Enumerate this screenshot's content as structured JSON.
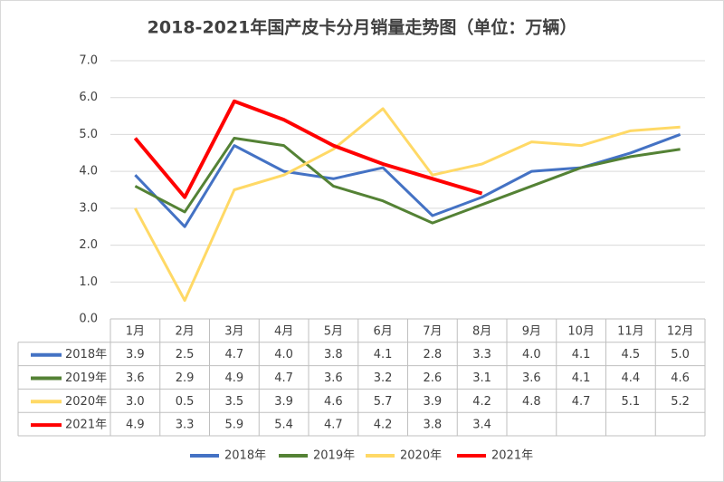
{
  "chart_data": {
    "type": "line",
    "title": "2018-2021年国产皮卡分月销量走势图（单位：万辆）",
    "categories": [
      "1月",
      "2月",
      "3月",
      "4月",
      "5月",
      "6月",
      "7月",
      "8月",
      "9月",
      "10月",
      "11月",
      "12月"
    ],
    "series": [
      {
        "name": "2018年",
        "color": "#4472c4",
        "values": [
          3.9,
          2.5,
          4.7,
          4,
          3.8,
          4.1,
          2.8,
          3.3,
          4,
          4.1,
          4.5,
          5
        ],
        "value_labels": [
          "3.9",
          "2.5",
          "4.7",
          "4.0",
          "3.8",
          "4.1",
          "2.8",
          "3.3",
          "4.0",
          "4.1",
          "4.5",
          "5.0"
        ]
      },
      {
        "name": "2019年",
        "color": "#548235",
        "values": [
          3.6,
          2.9,
          4.9,
          4.7,
          3.6,
          3.2,
          2.6,
          3.1,
          3.6,
          4.1,
          4.4,
          4.6
        ],
        "value_labels": [
          "3.6",
          "2.9",
          "4.9",
          "4.7",
          "3.6",
          "3.2",
          "2.6",
          "3.1",
          "3.6",
          "4.1",
          "4.4",
          "4.6"
        ]
      },
      {
        "name": "2020年",
        "color": "#ffd966",
        "values": [
          3,
          0.5,
          3.5,
          3.9,
          4.6,
          5.7,
          3.9,
          4.2,
          4.8,
          4.7,
          5.1,
          5.2
        ],
        "value_labels": [
          "3.0",
          "0.5",
          "3.5",
          "3.9",
          "4.6",
          "5.7",
          "3.9",
          "4.2",
          "4.8",
          "4.7",
          "5.1",
          "5.2"
        ]
      },
      {
        "name": "2021年",
        "color": "#ff0000",
        "values": [
          4.9,
          3.3,
          5.9,
          5.4,
          4.7,
          4.2,
          3.8,
          3.4,
          null,
          null,
          null,
          null
        ],
        "value_labels": [
          "4.9",
          "3.3",
          "5.9",
          "5.4",
          "4.7",
          "4.2",
          "3.8",
          "3.4",
          null,
          null,
          null,
          null
        ]
      }
    ],
    "ylim": [
      0,
      7
    ],
    "yticks": [
      {
        "value": 0,
        "label": "0.0"
      },
      {
        "value": 1,
        "label": "1.0"
      },
      {
        "value": 2,
        "label": "2.0"
      },
      {
        "value": 3,
        "label": "3.0"
      },
      {
        "value": 4,
        "label": "4.0"
      },
      {
        "value": 5,
        "label": "5.0"
      },
      {
        "value": 6,
        "label": "6.0"
      },
      {
        "value": 7,
        "label": "7.0"
      }
    ],
    "grid": true,
    "legend": "bottom"
  }
}
